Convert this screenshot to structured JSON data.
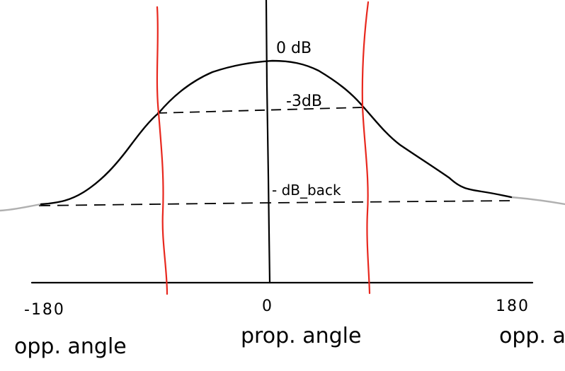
{
  "labels": {
    "zero_db": "0 dB",
    "minus_3db": "-3dB",
    "db_back": "- dB_back",
    "tick_left": "-180",
    "tick_center": "0",
    "tick_right": "180",
    "left_caption": "opp. angle",
    "center_caption": "prop. angle",
    "right_caption": "opp. a."
  },
  "colors": {
    "ink": "#000000",
    "beam_edges": "#e8281e",
    "faded_tail": "#b0b0b0"
  }
}
